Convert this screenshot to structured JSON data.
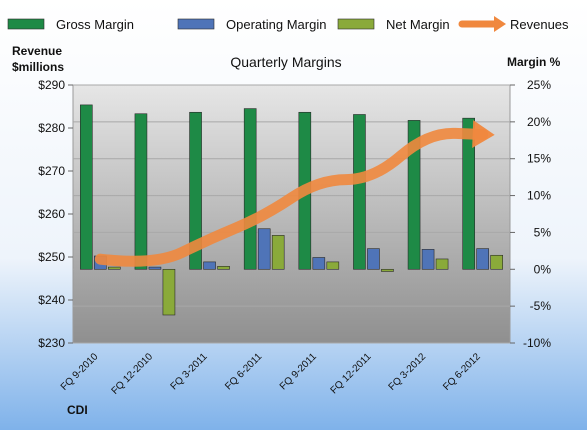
{
  "chart_data": {
    "type": "bar",
    "title": "Quarterly Margins",
    "company": "CDI",
    "left_axis": {
      "label_line1": "Revenue",
      "label_line2": "$millions",
      "range": [
        230,
        290
      ],
      "ticks": [
        230,
        240,
        250,
        260,
        270,
        280,
        290
      ],
      "tick_labels": [
        "$230",
        "$240",
        "$250",
        "$260",
        "$270",
        "$280",
        "$290"
      ]
    },
    "right_axis": {
      "label": "Margin %",
      "range": [
        -10,
        25
      ],
      "ticks": [
        -10,
        -5,
        0,
        5,
        10,
        15,
        20,
        25
      ],
      "tick_labels": [
        "-10%",
        "-5%",
        "0%",
        "5%",
        "10%",
        "15%",
        "20%",
        "25%"
      ]
    },
    "categories": [
      "FQ 9-2010",
      "FQ 12-2010",
      "FQ 3-2011",
      "FQ 6-2011",
      "FQ 9-2011",
      "FQ 12-2011",
      "FQ 3-2012",
      "FQ 6-2012"
    ],
    "series": [
      {
        "name": "Gross Margin",
        "axis": "right",
        "color": "#1e8a46",
        "values": [
          22.3,
          21.1,
          21.3,
          21.8,
          21.3,
          21.0,
          20.2,
          20.5
        ]
      },
      {
        "name": "Operating Margin",
        "axis": "right",
        "color": "#4f74b8",
        "values": [
          1.8,
          0.3,
          1.0,
          5.5,
          1.6,
          2.8,
          2.7,
          2.8
        ]
      },
      {
        "name": "Net Margin",
        "axis": "right",
        "color": "#8aaa3a",
        "values": [
          0.3,
          -6.2,
          0.4,
          4.6,
          1.0,
          -0.3,
          1.4,
          1.9
        ]
      },
      {
        "name": "Revenues",
        "type": "line",
        "axis": "left",
        "color": "#f0883e",
        "values": [
          249.5,
          248.0,
          254.2,
          259.5,
          268.0,
          268.0,
          279.0,
          278.5
        ]
      }
    ],
    "grid": true,
    "legend_position": "top"
  }
}
